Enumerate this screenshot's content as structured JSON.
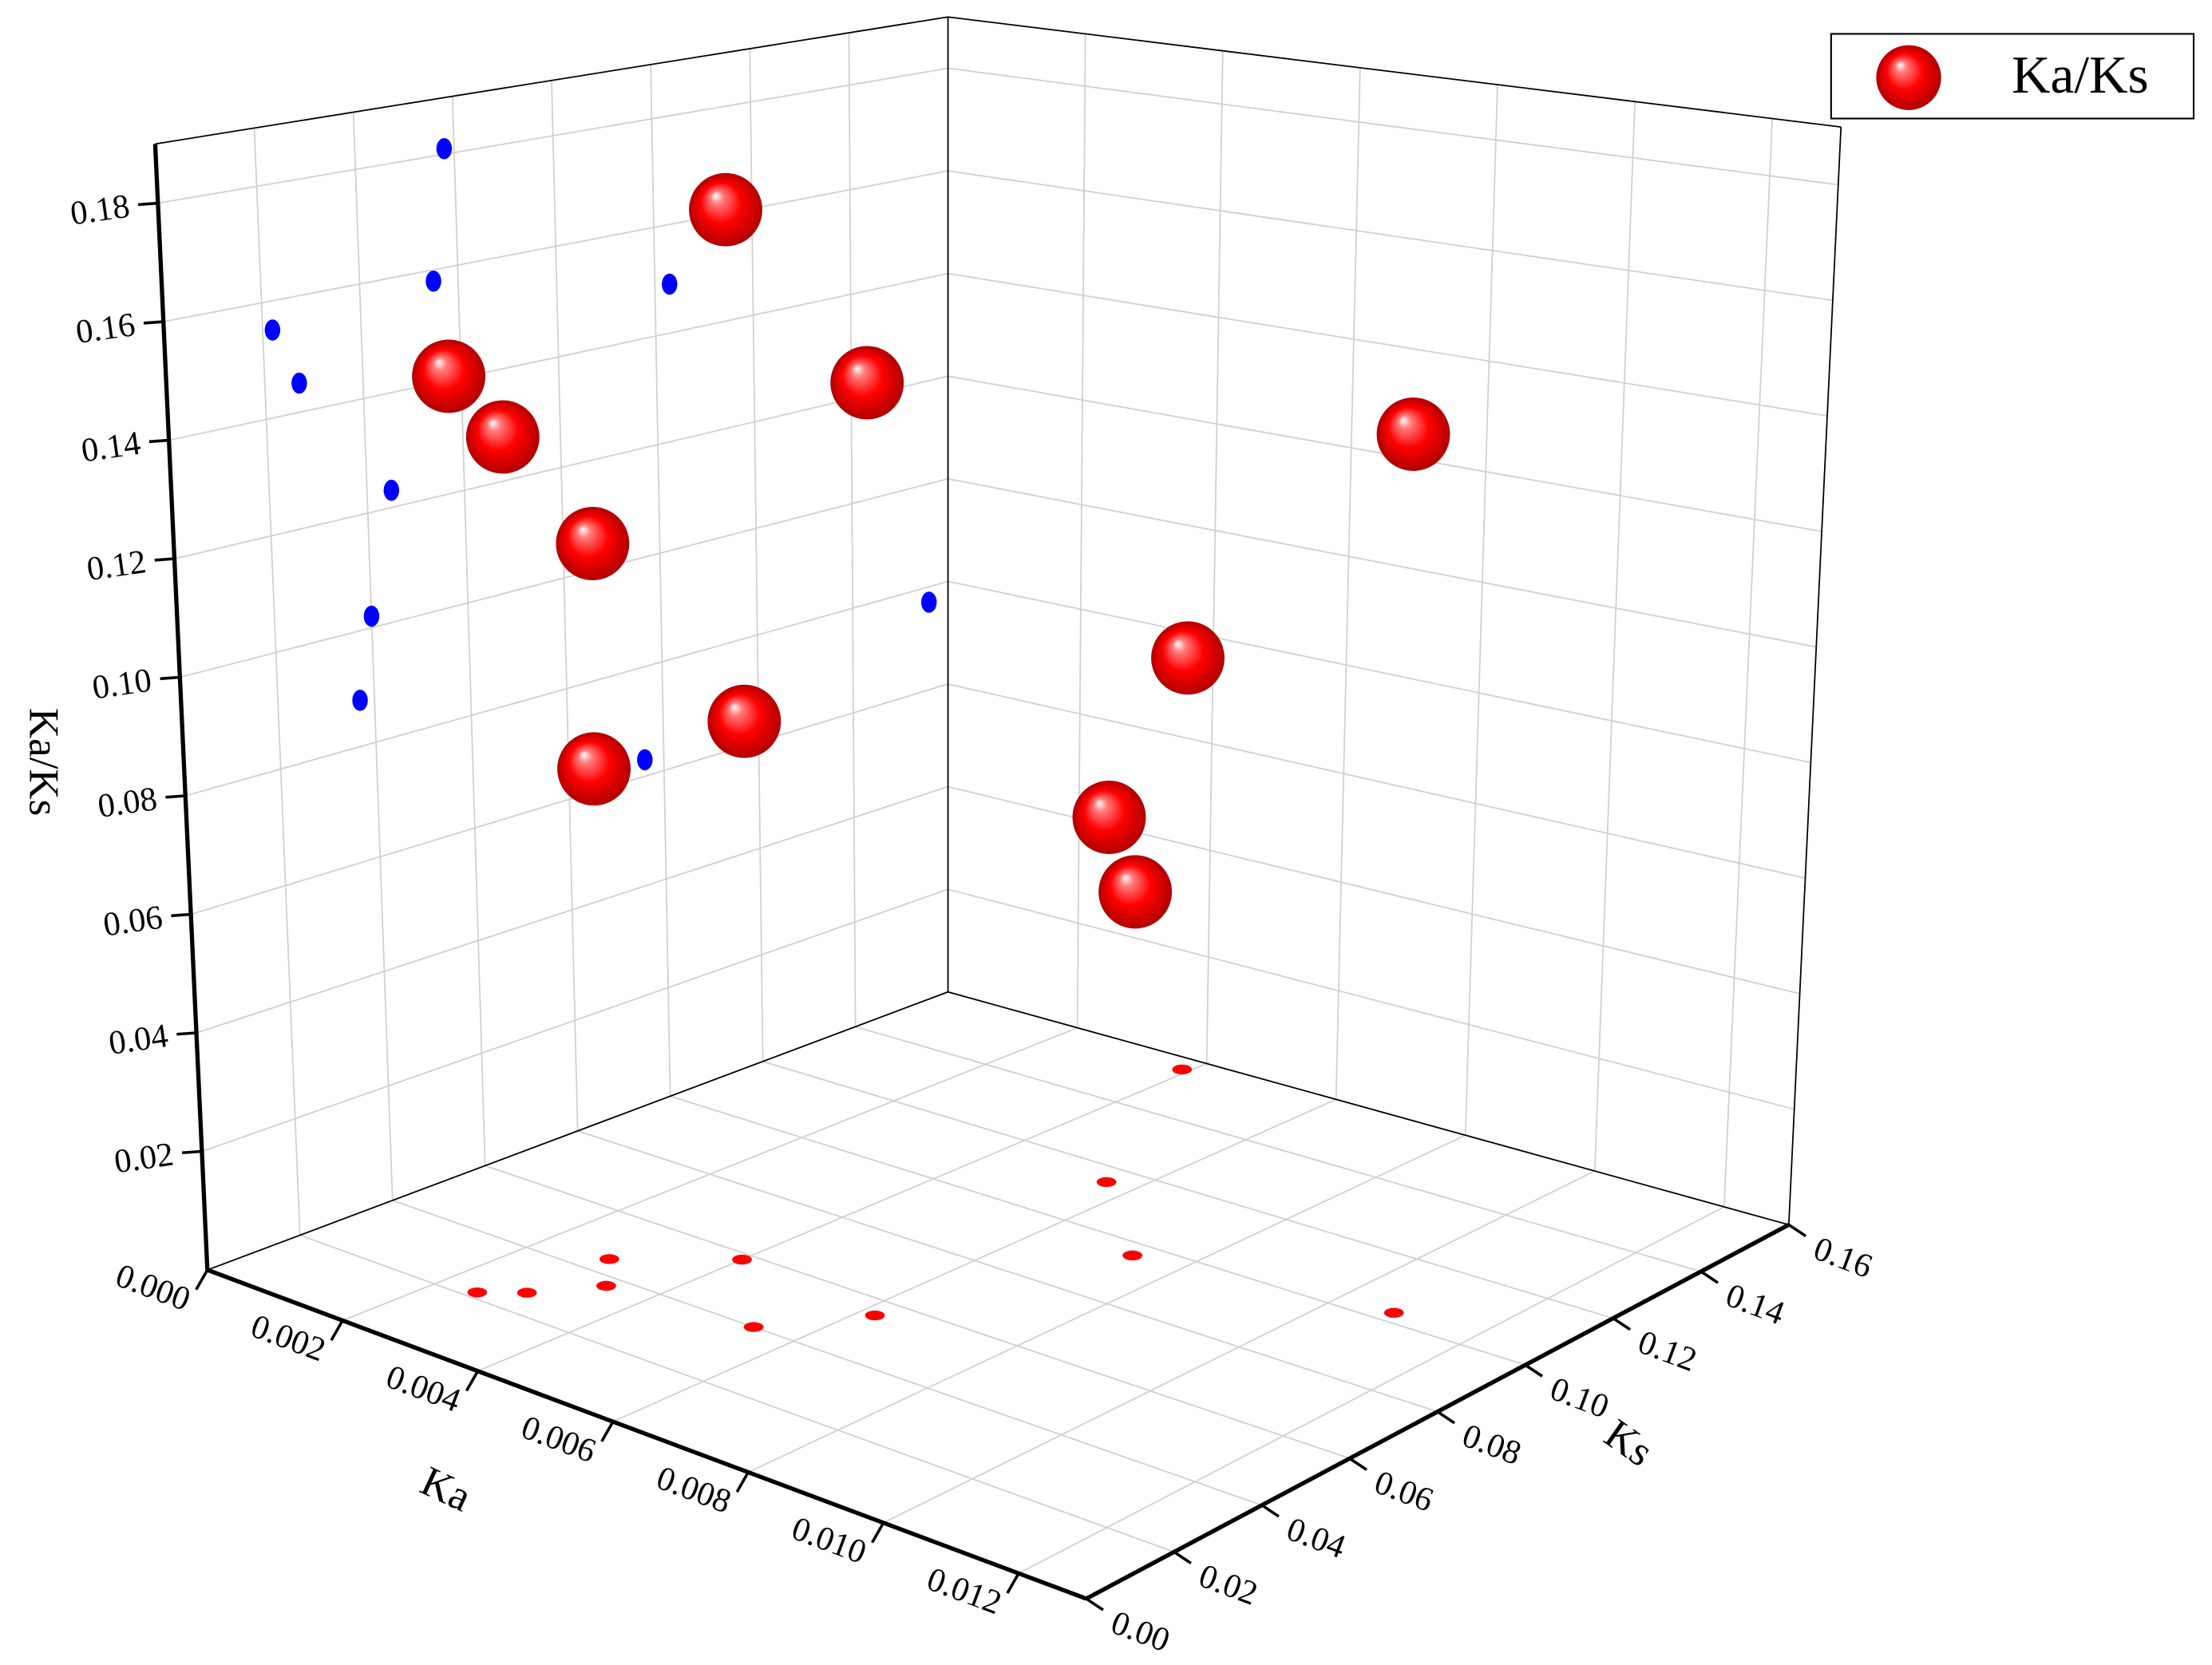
{
  "chart_data": {
    "type": "scatter3d",
    "x_label": "Ka",
    "y_label": "Ks",
    "z_label": "Ka/Ks",
    "xlim": [
      0,
      0.013
    ],
    "ylim": [
      0,
      0.16
    ],
    "zlim": [
      0,
      0.19
    ],
    "xticks": [
      {
        "value": 0,
        "label": "0.000"
      },
      {
        "value": 0.002,
        "label": "0.002"
      },
      {
        "value": 0.004,
        "label": "0.004"
      },
      {
        "value": 0.006,
        "label": "0.006"
      },
      {
        "value": 0.008,
        "label": "0.008"
      },
      {
        "value": 0.01,
        "label": "0.010"
      },
      {
        "value": 0.012,
        "label": "0.012"
      }
    ],
    "yticks": [
      {
        "value": 0,
        "label": "0.00"
      },
      {
        "value": 0.02,
        "label": "0.02"
      },
      {
        "value": 0.04,
        "label": "0.04"
      },
      {
        "value": 0.06,
        "label": "0.06"
      },
      {
        "value": 0.08,
        "label": "0.08"
      },
      {
        "value": 0.1,
        "label": "0.10"
      },
      {
        "value": 0.12,
        "label": "0.12"
      },
      {
        "value": 0.14,
        "label": "0.14"
      },
      {
        "value": 0.16,
        "label": "0.16"
      }
    ],
    "zticks": [
      {
        "value": 0.02,
        "label": "0.02"
      },
      {
        "value": 0.04,
        "label": "0.04"
      },
      {
        "value": 0.06,
        "label": "0.06"
      },
      {
        "value": 0.08,
        "label": "0.08"
      },
      {
        "value": 0.1,
        "label": "0.10"
      },
      {
        "value": 0.12,
        "label": "0.12"
      },
      {
        "value": 0.14,
        "label": "0.14"
      },
      {
        "value": 0.16,
        "label": "0.16"
      },
      {
        "value": 0.18,
        "label": "0.18"
      }
    ],
    "grid": true,
    "legend": "top-right",
    "wall_projection_color": "#0000ff",
    "floor_projection_color": "#ff0000",
    "series": [
      {
        "name": "Ka/Ks",
        "color": "#ff0000",
        "x": [
          0.0039,
          0.0056,
          0.0073,
          0.0108,
          0.0029,
          0.004,
          0.0062,
          0.0054,
          0.0025,
          0.0029,
          0.0034
        ],
        "y": [
          0.156,
          0.115,
          0.096,
          0.103,
          0.045,
          0.058,
          0.055,
          0.04,
          0.022,
          0.027,
          0.037
        ],
        "z": [
          0.077,
          0.065,
          0.063,
          0.149,
          0.123,
          0.181,
          0.158,
          0.102,
          0.155,
          0.145,
          0.088
        ]
      }
    ]
  }
}
